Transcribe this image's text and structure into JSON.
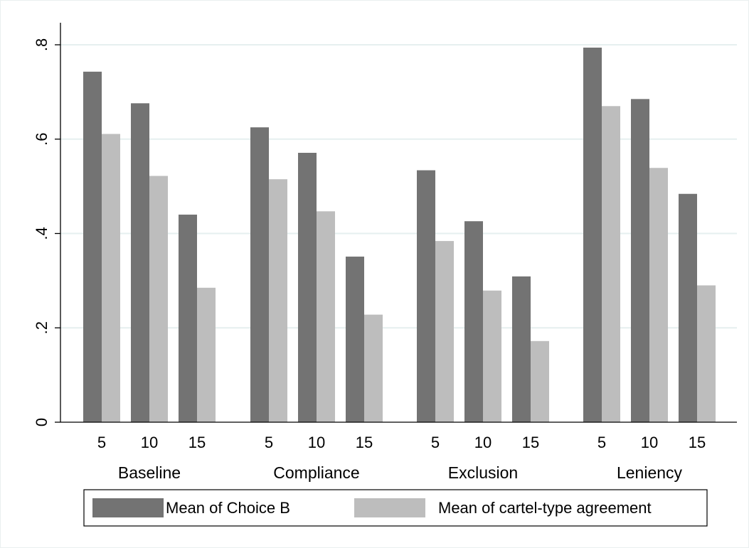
{
  "chart_data": {
    "type": "bar",
    "title": "",
    "xlabel": "",
    "ylabel": "",
    "ylim": [
      0,
      0.8
    ],
    "yticks": [
      {
        "value": 0,
        "label": "0"
      },
      {
        "value": 0.2,
        "label": ".2"
      },
      {
        "value": 0.4,
        "label": ".4"
      },
      {
        "value": 0.6,
        "label": ".6"
      },
      {
        "value": 0.8,
        "label": ".8"
      }
    ],
    "grid": true,
    "legend_position": "bottom",
    "groups": [
      "Baseline",
      "Compliance",
      "Exclusion",
      "Leniency"
    ],
    "subcategories": [
      "5",
      "10",
      "15"
    ],
    "series": [
      {
        "name": "Mean of Choice B",
        "color": "#737373",
        "values": [
          [
            0.743,
            0.676,
            0.44
          ],
          [
            0.625,
            0.571,
            0.351
          ],
          [
            0.534,
            0.426,
            0.309
          ],
          [
            0.794,
            0.685,
            0.484
          ]
        ]
      },
      {
        "name": "Mean of cartel-type agreement",
        "color": "#bdbdbd",
        "values": [
          [
            0.611,
            0.522,
            0.285
          ],
          [
            0.515,
            0.447,
            0.228
          ],
          [
            0.384,
            0.279,
            0.172
          ],
          [
            0.67,
            0.539,
            0.29
          ]
        ]
      }
    ]
  }
}
